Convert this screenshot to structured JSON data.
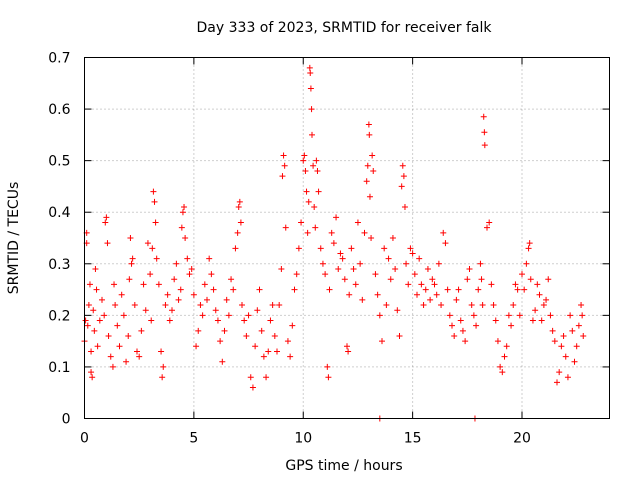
{
  "chart_data": {
    "type": "scatter",
    "title": "Day 333 of 2023, SRMTID for receiver falk",
    "xlabel": "GPS time / hours",
    "ylabel": "SRMTID / TECUs",
    "xlim": [
      0,
      24
    ],
    "ylim": [
      0,
      0.7
    ],
    "x_ticks": [
      0,
      5,
      10,
      15,
      20
    ],
    "x_tick_labels": [
      "0",
      "5",
      "10",
      "15",
      "20"
    ],
    "y_ticks": [
      0,
      0.1,
      0.2,
      0.3,
      0.4,
      0.5,
      0.6,
      0.7
    ],
    "y_tick_labels": [
      "0",
      "0.1",
      "0.2",
      "0.3",
      "0.4",
      "0.5",
      "0.6",
      "0.7"
    ],
    "grid": true,
    "marker": "plus",
    "color": "#ff0000",
    "series": [
      {
        "name": "SRMTID",
        "points": [
          [
            0.0,
            0.15
          ],
          [
            0.05,
            0.19
          ],
          [
            0.1,
            0.36
          ],
          [
            0.1,
            0.34
          ],
          [
            0.15,
            0.18
          ],
          [
            0.2,
            0.22
          ],
          [
            0.25,
            0.26
          ],
          [
            0.3,
            0.13
          ],
          [
            0.3,
            0.09
          ],
          [
            0.35,
            0.08
          ],
          [
            0.4,
            0.21
          ],
          [
            0.45,
            0.17
          ],
          [
            0.5,
            0.29
          ],
          [
            0.55,
            0.25
          ],
          [
            0.6,
            0.14
          ],
          [
            0.7,
            0.19
          ],
          [
            0.8,
            0.23
          ],
          [
            0.9,
            0.2
          ],
          [
            0.95,
            0.38
          ],
          [
            1.0,
            0.39
          ],
          [
            1.05,
            0.34
          ],
          [
            1.1,
            0.16
          ],
          [
            1.2,
            0.12
          ],
          [
            1.3,
            0.1
          ],
          [
            1.35,
            0.26
          ],
          [
            1.4,
            0.22
          ],
          [
            1.5,
            0.18
          ],
          [
            1.6,
            0.14
          ],
          [
            1.7,
            0.24
          ],
          [
            1.8,
            0.2
          ],
          [
            1.9,
            0.11
          ],
          [
            2.0,
            0.16
          ],
          [
            2.05,
            0.27
          ],
          [
            2.1,
            0.35
          ],
          [
            2.15,
            0.3
          ],
          [
            2.2,
            0.31
          ],
          [
            2.3,
            0.22
          ],
          [
            2.4,
            0.13
          ],
          [
            2.5,
            0.12
          ],
          [
            2.6,
            0.17
          ],
          [
            2.7,
            0.26
          ],
          [
            2.8,
            0.21
          ],
          [
            2.9,
            0.34
          ],
          [
            3.0,
            0.28
          ],
          [
            3.05,
            0.19
          ],
          [
            3.1,
            0.33
          ],
          [
            3.15,
            0.44
          ],
          [
            3.2,
            0.42
          ],
          [
            3.25,
            0.38
          ],
          [
            3.3,
            0.31
          ],
          [
            3.4,
            0.26
          ],
          [
            3.5,
            0.13
          ],
          [
            3.55,
            0.08
          ],
          [
            3.6,
            0.1
          ],
          [
            3.7,
            0.22
          ],
          [
            3.8,
            0.24
          ],
          [
            3.9,
            0.19
          ],
          [
            4.0,
            0.21
          ],
          [
            4.1,
            0.27
          ],
          [
            4.2,
            0.3
          ],
          [
            4.3,
            0.23
          ],
          [
            4.4,
            0.25
          ],
          [
            4.45,
            0.37
          ],
          [
            4.5,
            0.4
          ],
          [
            4.55,
            0.41
          ],
          [
            4.6,
            0.35
          ],
          [
            4.7,
            0.31
          ],
          [
            4.8,
            0.28
          ],
          [
            4.9,
            0.29
          ],
          [
            5.0,
            0.24
          ],
          [
            5.1,
            0.14
          ],
          [
            5.2,
            0.17
          ],
          [
            5.3,
            0.22
          ],
          [
            5.4,
            0.2
          ],
          [
            5.5,
            0.26
          ],
          [
            5.6,
            0.23
          ],
          [
            5.7,
            0.31
          ],
          [
            5.8,
            0.28
          ],
          [
            5.9,
            0.25
          ],
          [
            6.0,
            0.21
          ],
          [
            6.1,
            0.19
          ],
          [
            6.2,
            0.15
          ],
          [
            6.3,
            0.11
          ],
          [
            6.4,
            0.17
          ],
          [
            6.5,
            0.23
          ],
          [
            6.6,
            0.2
          ],
          [
            6.7,
            0.27
          ],
          [
            6.8,
            0.25
          ],
          [
            6.9,
            0.33
          ],
          [
            7.0,
            0.36
          ],
          [
            7.05,
            0.41
          ],
          [
            7.1,
            0.42
          ],
          [
            7.15,
            0.38
          ],
          [
            7.2,
            0.22
          ],
          [
            7.3,
            0.19
          ],
          [
            7.4,
            0.16
          ],
          [
            7.5,
            0.2
          ],
          [
            7.6,
            0.08
          ],
          [
            7.7,
            0.06
          ],
          [
            7.8,
            0.14
          ],
          [
            7.9,
            0.21
          ],
          [
            8.0,
            0.25
          ],
          [
            8.1,
            0.17
          ],
          [
            8.2,
            0.12
          ],
          [
            8.3,
            0.08
          ],
          [
            8.4,
            0.13
          ],
          [
            8.5,
            0.19
          ],
          [
            8.6,
            0.22
          ],
          [
            8.7,
            0.16
          ],
          [
            8.8,
            0.13
          ],
          [
            8.9,
            0.22
          ],
          [
            9.0,
            0.29
          ],
          [
            9.05,
            0.47
          ],
          [
            9.1,
            0.51
          ],
          [
            9.15,
            0.49
          ],
          [
            9.2,
            0.37
          ],
          [
            9.3,
            0.15
          ],
          [
            9.4,
            0.12
          ],
          [
            9.5,
            0.18
          ],
          [
            9.6,
            0.25
          ],
          [
            9.7,
            0.28
          ],
          [
            9.8,
            0.33
          ],
          [
            9.9,
            0.38
          ],
          [
            10.0,
            0.5
          ],
          [
            10.05,
            0.51
          ],
          [
            10.1,
            0.48
          ],
          [
            10.15,
            0.44
          ],
          [
            10.2,
            0.36
          ],
          [
            10.25,
            0.42
          ],
          [
            10.3,
            0.68
          ],
          [
            10.32,
            0.67
          ],
          [
            10.35,
            0.64
          ],
          [
            10.38,
            0.6
          ],
          [
            10.4,
            0.55
          ],
          [
            10.45,
            0.49
          ],
          [
            10.5,
            0.41
          ],
          [
            10.55,
            0.37
          ],
          [
            10.6,
            0.5
          ],
          [
            10.65,
            0.48
          ],
          [
            10.7,
            0.44
          ],
          [
            10.8,
            0.33
          ],
          [
            10.9,
            0.3
          ],
          [
            11.0,
            0.28
          ],
          [
            11.1,
            0.1
          ],
          [
            11.15,
            0.08
          ],
          [
            11.2,
            0.25
          ],
          [
            11.3,
            0.36
          ],
          [
            11.4,
            0.34
          ],
          [
            11.5,
            0.39
          ],
          [
            11.6,
            0.29
          ],
          [
            11.7,
            0.32
          ],
          [
            11.8,
            0.31
          ],
          [
            11.9,
            0.27
          ],
          [
            12.0,
            0.14
          ],
          [
            12.05,
            0.13
          ],
          [
            12.1,
            0.24
          ],
          [
            12.2,
            0.33
          ],
          [
            12.3,
            0.29
          ],
          [
            12.4,
            0.26
          ],
          [
            12.5,
            0.38
          ],
          [
            12.6,
            0.3
          ],
          [
            12.7,
            0.23
          ],
          [
            12.8,
            0.36
          ],
          [
            12.9,
            0.46
          ],
          [
            12.95,
            0.49
          ],
          [
            13.0,
            0.57
          ],
          [
            13.02,
            0.55
          ],
          [
            13.05,
            0.43
          ],
          [
            13.1,
            0.35
          ],
          [
            13.15,
            0.51
          ],
          [
            13.2,
            0.48
          ],
          [
            13.3,
            0.28
          ],
          [
            13.4,
            0.24
          ],
          [
            13.5,
            0.2
          ],
          [
            13.6,
            0.15
          ],
          [
            13.7,
            0.33
          ],
          [
            13.8,
            0.22
          ],
          [
            13.9,
            0.31
          ],
          [
            14.0,
            0.27
          ],
          [
            14.1,
            0.35
          ],
          [
            14.2,
            0.29
          ],
          [
            14.3,
            0.21
          ],
          [
            14.4,
            0.16
          ],
          [
            14.5,
            0.45
          ],
          [
            14.55,
            0.49
          ],
          [
            14.6,
            0.47
          ],
          [
            14.65,
            0.41
          ],
          [
            14.7,
            0.3
          ],
          [
            14.8,
            0.26
          ],
          [
            14.9,
            0.33
          ],
          [
            15.0,
            0.32
          ],
          [
            15.1,
            0.28
          ],
          [
            15.2,
            0.24
          ],
          [
            15.3,
            0.31
          ],
          [
            15.4,
            0.26
          ],
          [
            15.5,
            0.22
          ],
          [
            15.6,
            0.25
          ],
          [
            15.7,
            0.29
          ],
          [
            15.8,
            0.23
          ],
          [
            15.9,
            0.27
          ],
          [
            16.0,
            0.26
          ],
          [
            16.1,
            0.24
          ],
          [
            16.2,
            0.3
          ],
          [
            16.3,
            0.22
          ],
          [
            16.4,
            0.36
          ],
          [
            16.5,
            0.34
          ],
          [
            16.6,
            0.25
          ],
          [
            16.7,
            0.2
          ],
          [
            16.8,
            0.18
          ],
          [
            16.9,
            0.16
          ],
          [
            17.0,
            0.23
          ],
          [
            17.1,
            0.25
          ],
          [
            17.2,
            0.19
          ],
          [
            17.3,
            0.17
          ],
          [
            17.4,
            0.15
          ],
          [
            17.5,
            0.27
          ],
          [
            17.6,
            0.29
          ],
          [
            17.7,
            0.22
          ],
          [
            17.8,
            0.2
          ],
          [
            17.9,
            0.18
          ],
          [
            18.0,
            0.25
          ],
          [
            18.1,
            0.3
          ],
          [
            18.15,
            0.27
          ],
          [
            18.2,
            0.22
          ],
          [
            18.25,
            0.585
          ],
          [
            18.28,
            0.555
          ],
          [
            18.3,
            0.53
          ],
          [
            18.4,
            0.37
          ],
          [
            18.5,
            0.38
          ],
          [
            18.6,
            0.26
          ],
          [
            18.7,
            0.22
          ],
          [
            18.8,
            0.19
          ],
          [
            18.9,
            0.15
          ],
          [
            19.0,
            0.1
          ],
          [
            19.1,
            0.09
          ],
          [
            19.2,
            0.12
          ],
          [
            19.3,
            0.14
          ],
          [
            19.4,
            0.2
          ],
          [
            19.5,
            0.18
          ],
          [
            19.6,
            0.22
          ],
          [
            19.7,
            0.26
          ],
          [
            19.8,
            0.25
          ],
          [
            19.9,
            0.2
          ],
          [
            20.0,
            0.28
          ],
          [
            20.1,
            0.25
          ],
          [
            20.2,
            0.3
          ],
          [
            20.3,
            0.33
          ],
          [
            20.35,
            0.34
          ],
          [
            20.4,
            0.27
          ],
          [
            20.5,
            0.19
          ],
          [
            20.6,
            0.21
          ],
          [
            20.7,
            0.26
          ],
          [
            20.8,
            0.24
          ],
          [
            20.9,
            0.19
          ],
          [
            21.0,
            0.22
          ],
          [
            21.1,
            0.23
          ],
          [
            21.2,
            0.27
          ],
          [
            21.3,
            0.2
          ],
          [
            21.4,
            0.17
          ],
          [
            21.5,
            0.15
          ],
          [
            21.6,
            0.07
          ],
          [
            21.7,
            0.09
          ],
          [
            21.8,
            0.14
          ],
          [
            21.9,
            0.16
          ],
          [
            22.0,
            0.12
          ],
          [
            22.1,
            0.08
          ],
          [
            22.2,
            0.2
          ],
          [
            22.3,
            0.17
          ],
          [
            22.4,
            0.11
          ],
          [
            22.5,
            0.14
          ],
          [
            22.6,
            0.18
          ],
          [
            22.7,
            0.22
          ],
          [
            22.75,
            0.2
          ],
          [
            22.8,
            0.16
          ],
          [
            13.5,
            0.0
          ],
          [
            17.85,
            0.0
          ]
        ]
      }
    ]
  }
}
